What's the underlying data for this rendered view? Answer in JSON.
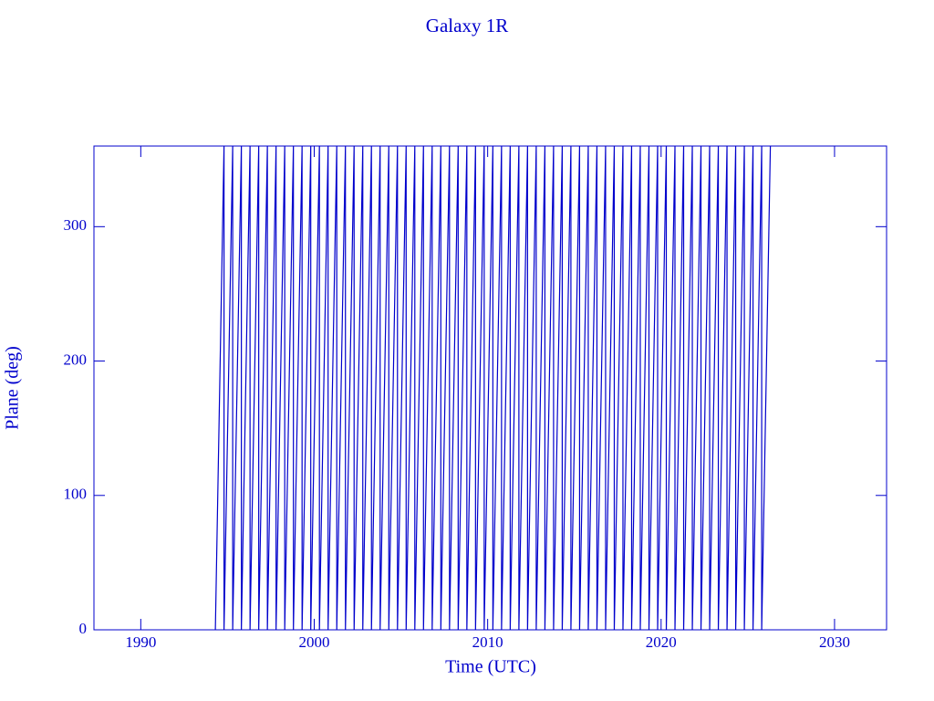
{
  "chart_data": {
    "type": "line",
    "title": "Galaxy 1R",
    "xlabel": "Time (UTC)",
    "ylabel": "Plane (deg)",
    "color": "#0000cc",
    "x": [
      1994.3,
      1994.8,
      1994.8,
      1995.3,
      1995.3,
      1995.8,
      1995.8,
      1996.3,
      1996.3,
      1996.8,
      1996.8,
      1997.3,
      1997.3,
      1997.8,
      1997.8,
      1998.3,
      1998.3,
      1998.8,
      1998.8,
      1999.3,
      1999.3,
      1999.8,
      1999.8,
      2000.3,
      2000.3,
      2000.8,
      2000.8,
      2001.3,
      2001.3,
      2001.8,
      2001.8,
      2002.3,
      2002.3,
      2002.8,
      2002.8,
      2003.3,
      2003.3,
      2003.8,
      2003.8,
      2004.3,
      2004.3,
      2004.8,
      2004.8,
      2005.3,
      2005.3,
      2005.8,
      2005.8,
      2006.3,
      2006.3,
      2006.8,
      2006.8,
      2007.3,
      2007.3,
      2007.8,
      2007.8,
      2008.3,
      2008.3,
      2008.8,
      2008.8,
      2009.3,
      2009.3,
      2009.8,
      2009.8,
      2010.3,
      2010.3,
      2010.8,
      2010.8,
      2011.3,
      2011.3,
      2011.8,
      2011.8,
      2012.3,
      2012.3,
      2012.8,
      2012.8,
      2013.3,
      2013.3,
      2013.8,
      2013.8,
      2014.3,
      2014.3,
      2014.8,
      2014.8,
      2015.3,
      2015.3,
      2015.8,
      2015.8,
      2016.3,
      2016.3,
      2016.8,
      2016.8,
      2017.3,
      2017.3,
      2017.8,
      2017.8,
      2018.3,
      2018.3,
      2018.8,
      2018.8,
      2019.3,
      2019.3,
      2019.8,
      2019.8,
      2020.3,
      2020.3,
      2020.8,
      2020.8,
      2021.3,
      2021.3,
      2021.8,
      2021.8,
      2022.3,
      2022.3,
      2022.8,
      2022.8,
      2023.3,
      2023.3,
      2023.8,
      2023.8,
      2024.3,
      2024.3,
      2024.8,
      2024.8,
      2025.3,
      2025.3,
      2025.8,
      2025.8,
      2026.3
    ],
    "values": [
      0,
      360,
      0,
      360,
      0,
      360,
      0,
      360,
      0,
      360,
      0,
      360,
      0,
      360,
      0,
      360,
      0,
      360,
      0,
      360,
      0,
      360,
      0,
      360,
      0,
      360,
      0,
      360,
      0,
      360,
      0,
      360,
      0,
      360,
      0,
      360,
      0,
      360,
      0,
      360,
      0,
      360,
      0,
      360,
      0,
      360,
      0,
      360,
      0,
      360,
      0,
      360,
      0,
      360,
      0,
      360,
      0,
      360,
      0,
      360,
      0,
      360,
      0,
      360,
      0,
      360,
      0,
      360,
      0,
      360,
      0,
      360,
      0,
      360,
      0,
      360,
      0,
      360,
      0,
      360,
      0,
      360,
      0,
      360,
      0,
      360,
      0,
      360,
      0,
      360,
      0,
      360,
      0,
      360,
      0,
      360,
      0,
      360,
      0,
      360,
      0,
      360,
      0,
      360,
      0,
      360,
      0,
      360,
      0,
      360,
      0,
      360,
      0,
      360,
      0,
      360,
      0,
      360,
      0,
      360,
      0,
      360,
      0,
      360,
      0,
      360,
      0,
      360
    ],
    "xlim": [
      1987.3,
      2033
    ],
    "xticks": [
      1990,
      2000,
      2010,
      2020,
      2030
    ],
    "ylim": [
      0,
      360
    ],
    "yticks": [
      0,
      100,
      200,
      300
    ]
  }
}
